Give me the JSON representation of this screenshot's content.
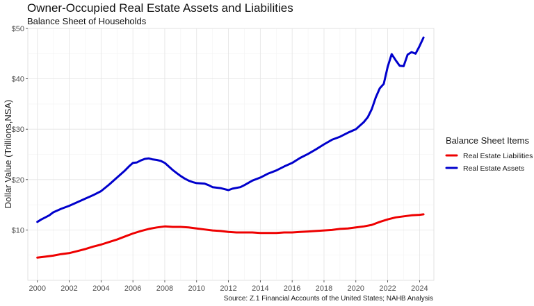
{
  "title": "Owner-Occupied Real Estate Assets and Liabilities",
  "subtitle": "Balance Sheet of Households",
  "caption": "Source: Z.1 Financial Accounts of the United States; NAHB Analysis",
  "chart_data": {
    "type": "line",
    "ylabel": "Dollar Value (Trillions,NSA)",
    "xlabel": "",
    "xlim": [
      1999.4,
      2024.9
    ],
    "ylim": [
      0,
      50
    ],
    "x_ticks": [
      2000,
      2002,
      2004,
      2006,
      2008,
      2010,
      2012,
      2014,
      2016,
      2018,
      2020,
      2022,
      2024
    ],
    "x_tick_labels": [
      "2000",
      "2002",
      "2004",
      "2006",
      "2008",
      "2010",
      "2012",
      "2014",
      "2016",
      "2018",
      "2020",
      "2022",
      "2024"
    ],
    "y_ticks": [
      10,
      20,
      30,
      40,
      50
    ],
    "y_tick_labels": [
      "$10",
      "$20",
      "$30",
      "$40",
      "$50"
    ],
    "grid": true,
    "legend_title": "Balance Sheet Items",
    "legend_position": "right",
    "series": [
      {
        "name": "Real Estate Liabilities",
        "color": "#ee0000",
        "points": [
          [
            2000.0,
            4.5
          ],
          [
            2000.5,
            4.7
          ],
          [
            2001.0,
            4.9
          ],
          [
            2001.5,
            5.2
          ],
          [
            2002.0,
            5.4
          ],
          [
            2002.5,
            5.8
          ],
          [
            2003.0,
            6.2
          ],
          [
            2003.5,
            6.7
          ],
          [
            2004.0,
            7.1
          ],
          [
            2004.5,
            7.6
          ],
          [
            2005.0,
            8.1
          ],
          [
            2005.5,
            8.7
          ],
          [
            2006.0,
            9.3
          ],
          [
            2006.5,
            9.8
          ],
          [
            2007.0,
            10.2
          ],
          [
            2007.5,
            10.5
          ],
          [
            2008.0,
            10.7
          ],
          [
            2008.5,
            10.6
          ],
          [
            2009.0,
            10.6
          ],
          [
            2009.5,
            10.5
          ],
          [
            2010.0,
            10.3
          ],
          [
            2010.5,
            10.1
          ],
          [
            2011.0,
            9.9
          ],
          [
            2011.5,
            9.8
          ],
          [
            2012.0,
            9.6
          ],
          [
            2012.5,
            9.5
          ],
          [
            2013.0,
            9.5
          ],
          [
            2013.5,
            9.5
          ],
          [
            2014.0,
            9.4
          ],
          [
            2014.5,
            9.4
          ],
          [
            2015.0,
            9.4
          ],
          [
            2015.5,
            9.5
          ],
          [
            2016.0,
            9.5
          ],
          [
            2016.5,
            9.6
          ],
          [
            2017.0,
            9.7
          ],
          [
            2017.5,
            9.8
          ],
          [
            2018.0,
            9.9
          ],
          [
            2018.5,
            10.0
          ],
          [
            2019.0,
            10.2
          ],
          [
            2019.5,
            10.3
          ],
          [
            2020.0,
            10.5
          ],
          [
            2020.5,
            10.7
          ],
          [
            2021.0,
            11.0
          ],
          [
            2021.5,
            11.6
          ],
          [
            2022.0,
            12.1
          ],
          [
            2022.5,
            12.5
          ],
          [
            2023.0,
            12.7
          ],
          [
            2023.5,
            12.9
          ],
          [
            2024.0,
            13.0
          ],
          [
            2024.25,
            13.1
          ]
        ]
      },
      {
        "name": "Real Estate Assets",
        "color": "#0000cc",
        "points": [
          [
            2000.0,
            11.6
          ],
          [
            2000.25,
            12.1
          ],
          [
            2000.5,
            12.5
          ],
          [
            2000.75,
            12.9
          ],
          [
            2001.0,
            13.5
          ],
          [
            2001.5,
            14.2
          ],
          [
            2002.0,
            14.8
          ],
          [
            2002.5,
            15.5
          ],
          [
            2003.0,
            16.2
          ],
          [
            2003.5,
            16.9
          ],
          [
            2004.0,
            17.7
          ],
          [
            2004.5,
            19.0
          ],
          [
            2005.0,
            20.4
          ],
          [
            2005.5,
            21.8
          ],
          [
            2005.75,
            22.6
          ],
          [
            2006.0,
            23.3
          ],
          [
            2006.25,
            23.4
          ],
          [
            2006.5,
            23.8
          ],
          [
            2006.75,
            24.1
          ],
          [
            2007.0,
            24.2
          ],
          [
            2007.25,
            24.0
          ],
          [
            2007.5,
            23.9
          ],
          [
            2007.75,
            23.7
          ],
          [
            2008.0,
            23.3
          ],
          [
            2008.25,
            22.6
          ],
          [
            2008.5,
            21.9
          ],
          [
            2008.75,
            21.3
          ],
          [
            2009.0,
            20.7
          ],
          [
            2009.25,
            20.2
          ],
          [
            2009.5,
            19.8
          ],
          [
            2009.75,
            19.5
          ],
          [
            2010.0,
            19.3
          ],
          [
            2010.5,
            19.2
          ],
          [
            2010.75,
            18.9
          ],
          [
            2011.0,
            18.5
          ],
          [
            2011.5,
            18.3
          ],
          [
            2011.75,
            18.1
          ],
          [
            2012.0,
            17.9
          ],
          [
            2012.25,
            18.2
          ],
          [
            2012.75,
            18.5
          ],
          [
            2013.0,
            18.9
          ],
          [
            2013.5,
            19.8
          ],
          [
            2014.0,
            20.4
          ],
          [
            2014.5,
            21.2
          ],
          [
            2015.0,
            21.8
          ],
          [
            2015.5,
            22.6
          ],
          [
            2016.0,
            23.3
          ],
          [
            2016.5,
            24.3
          ],
          [
            2017.0,
            25.1
          ],
          [
            2017.5,
            26.0
          ],
          [
            2018.0,
            27.0
          ],
          [
            2018.5,
            27.9
          ],
          [
            2019.0,
            28.5
          ],
          [
            2019.5,
            29.3
          ],
          [
            2020.0,
            30.0
          ],
          [
            2020.5,
            31.4
          ],
          [
            2020.75,
            32.4
          ],
          [
            2021.0,
            34.0
          ],
          [
            2021.25,
            36.3
          ],
          [
            2021.5,
            38.1
          ],
          [
            2021.75,
            39.0
          ],
          [
            2022.0,
            42.4
          ],
          [
            2022.25,
            44.9
          ],
          [
            2022.5,
            43.7
          ],
          [
            2022.75,
            42.6
          ],
          [
            2023.0,
            42.5
          ],
          [
            2023.25,
            44.8
          ],
          [
            2023.5,
            45.3
          ],
          [
            2023.75,
            45.0
          ],
          [
            2024.0,
            46.5
          ],
          [
            2024.25,
            48.2
          ]
        ]
      }
    ]
  }
}
